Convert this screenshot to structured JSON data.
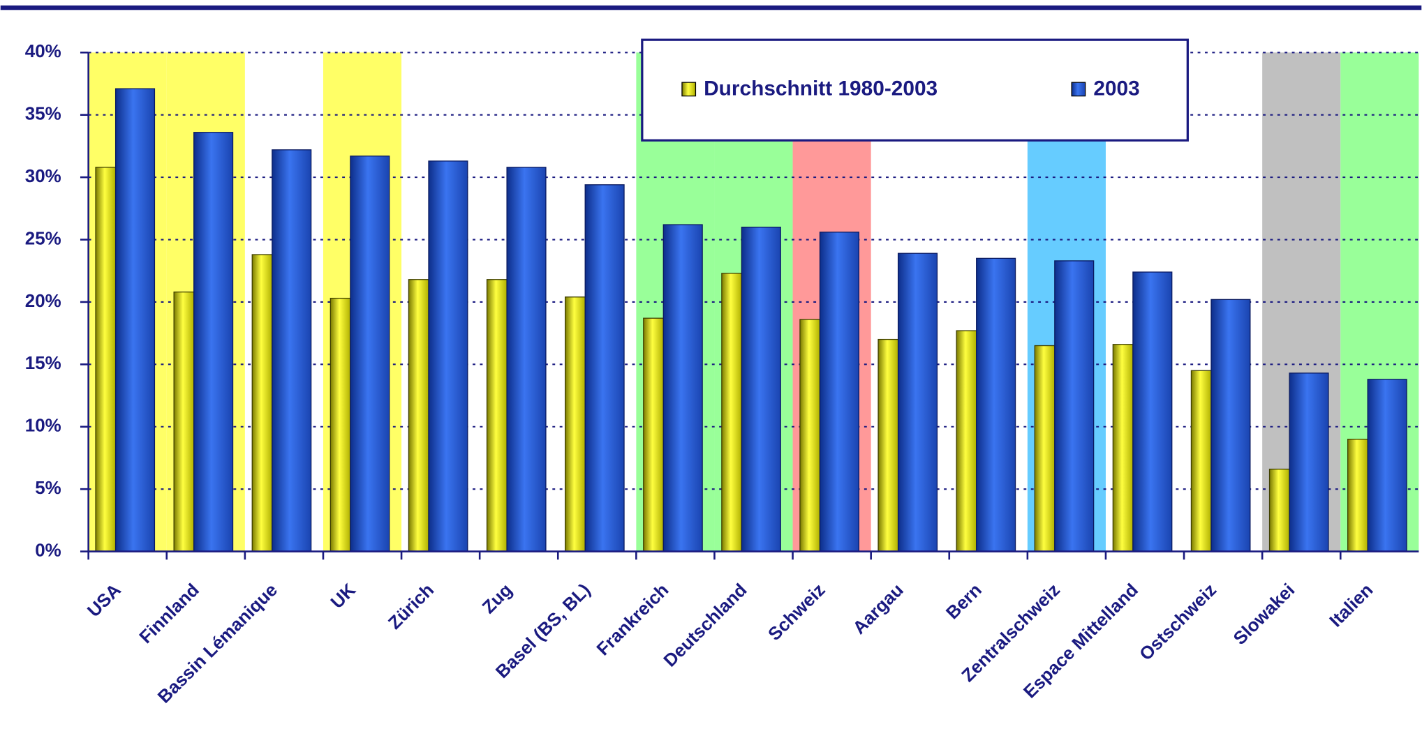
{
  "chart_data": {
    "type": "bar",
    "categories": [
      "USA",
      "Finnland",
      "Bassin Lémanique",
      "UK",
      "Zürich",
      "Zug",
      "Basel (BS, BL)",
      "Frankreich",
      "Deutschland",
      "Schweiz",
      "Aargau",
      "Bern",
      "Zentralschweiz",
      "Espace Mittelland",
      "Ostschweiz",
      "Slowakei",
      "Italien"
    ],
    "highlights": [
      "#ffff66",
      "#ffff66",
      null,
      "#ffff66",
      null,
      null,
      null,
      "#99ff99",
      "#99ff99",
      "#ff9999",
      null,
      null,
      "#66ccff",
      null,
      null,
      "#c0c0c0",
      "#99ff99"
    ],
    "series": [
      {
        "name": "Durchschnitt 1980-2003",
        "color": "#ffff00",
        "values": [
          30.8,
          20.8,
          23.8,
          20.3,
          21.8,
          21.8,
          20.4,
          18.7,
          22.3,
          18.6,
          17.0,
          17.7,
          16.5,
          16.6,
          14.5,
          6.6,
          9.0
        ]
      },
      {
        "name": "2003",
        "color": "#2a62e6",
        "values": [
          37.1,
          33.6,
          32.2,
          31.7,
          31.3,
          30.8,
          29.4,
          26.2,
          26.0,
          25.6,
          23.9,
          23.5,
          23.3,
          22.4,
          20.2,
          14.3,
          13.8
        ]
      }
    ],
    "ylim": [
      0,
      40
    ],
    "yticks": [
      {
        "value": 0,
        "label": "0%"
      },
      {
        "value": 5,
        "label": "5%"
      },
      {
        "value": 10,
        "label": "10%"
      },
      {
        "value": 15,
        "label": "15%"
      },
      {
        "value": 20,
        "label": "20%"
      },
      {
        "value": 25,
        "label": "25%"
      },
      {
        "value": 30,
        "label": "30%"
      },
      {
        "value": 35,
        "label": "35%"
      },
      {
        "value": 40,
        "label": "40%"
      }
    ],
    "grid": true,
    "legend": "top"
  }
}
